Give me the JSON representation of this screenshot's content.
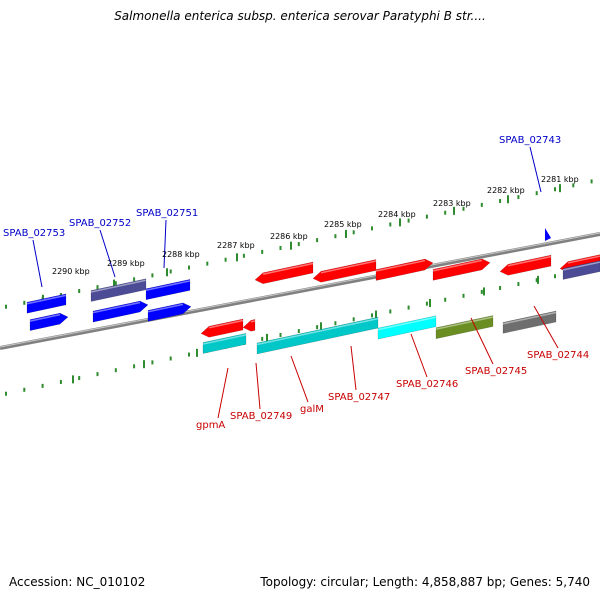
{
  "title": "Salmonella enterica subsp. enterica serovar Paratyphi B str....",
  "footer": {
    "accession": "Accession: NC_010102",
    "topology": "Topology: circular; Length: 4,858,887 bp; Genes: 5,740"
  },
  "colors": {
    "forward_label": "#0000c8",
    "reverse_label": "#c80000",
    "tick": "#2e8b2e",
    "backbone": "#808080",
    "gene_blue": "#0000ff",
    "gene_navy": "#4b4b96",
    "gene_red": "#ff0000",
    "gene_cyan": "#00c8c8",
    "gene_lightcyan": "#00ffff",
    "gene_olive": "#6b8e23",
    "gene_gray": "#6e6e6e",
    "direction_marker": "#0000ff"
  },
  "scale_ticks": [
    "2290 kbp",
    "2289 kbp",
    "2288 kbp",
    "2287 kbp",
    "2286 kbp",
    "2285 kbp",
    "2284 kbp",
    "2283 kbp",
    "2282 kbp",
    "2281 kbp"
  ],
  "gene_labels": {
    "forward": [
      "SPAB_02753",
      "SPAB_02752",
      "SPAB_02751",
      "SPAB_02743"
    ],
    "reverse": [
      "gpmA",
      "SPAB_02749",
      "galM",
      "SPAB_02747",
      "SPAB_02746",
      "SPAB_02745",
      "SPAB_02744"
    ]
  }
}
